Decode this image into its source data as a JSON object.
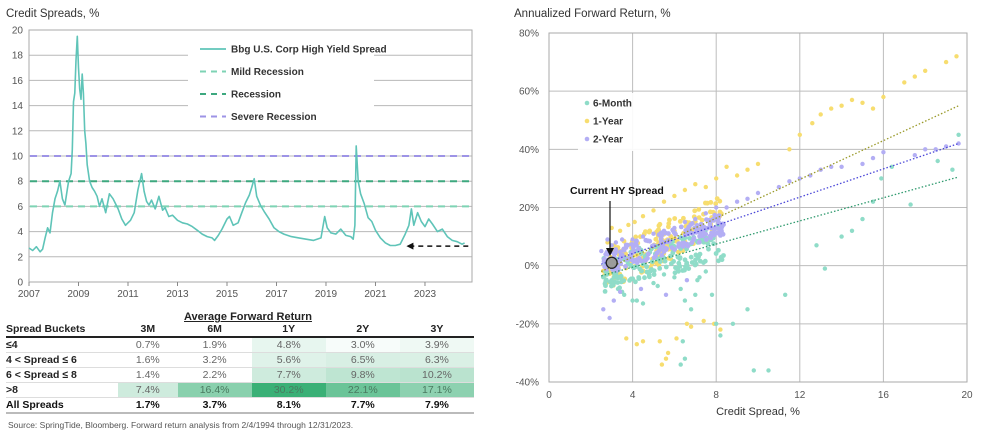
{
  "left_title": "Credit Spreads, %",
  "right_title": "Annualized Forward Return, %",
  "source": "Source: SpringTide, Bloomberg. Forward return analysis from 2/4/1994 through 12/31/2023.",
  "chart_data": [
    {
      "type": "line",
      "title": "Credit Spreads, %",
      "xlabel": "",
      "ylabel": "",
      "xlim": [
        2007,
        2024.9
      ],
      "ylim": [
        0,
        20
      ],
      "xticks": [
        "2007",
        "2009",
        "2011",
        "2013",
        "2015",
        "2017",
        "2019",
        "2021",
        "2023"
      ],
      "yticks": [
        "0",
        "2",
        "4",
        "6",
        "8",
        "10",
        "12",
        "14",
        "16",
        "18",
        "20"
      ],
      "grid": "horizontal",
      "legend_position": "top-center",
      "series": [
        {
          "name": "Bbg U.S. Corp High Yield Spread",
          "style": "solid",
          "color": "#5fc4b8",
          "x": [
            2007.0,
            2007.15,
            2007.3,
            2007.45,
            2007.55,
            2007.65,
            2007.75,
            2007.85,
            2007.95,
            2008.05,
            2008.15,
            2008.25,
            2008.35,
            2008.45,
            2008.55,
            2008.6,
            2008.7,
            2008.75,
            2008.8,
            2008.85,
            2008.9,
            2008.95,
            2009.0,
            2009.05,
            2009.1,
            2009.15,
            2009.2,
            2009.25,
            2009.3,
            2009.35,
            2009.45,
            2009.55,
            2009.65,
            2009.75,
            2009.85,
            2009.95,
            2010.1,
            2010.25,
            2010.4,
            2010.5,
            2010.6,
            2010.75,
            2010.9,
            2011.1,
            2011.25,
            2011.4,
            2011.55,
            2011.65,
            2011.75,
            2011.85,
            2011.95,
            2012.1,
            2012.25,
            2012.4,
            2012.5,
            2012.65,
            2012.8,
            2013.0,
            2013.2,
            2013.4,
            2013.6,
            2013.8,
            2014.0,
            2014.2,
            2014.4,
            2014.5,
            2014.65,
            2014.8,
            2015.0,
            2015.1,
            2015.25,
            2015.45,
            2015.6,
            2015.75,
            2015.9,
            2016.0,
            2016.1,
            2016.2,
            2016.35,
            2016.5,
            2016.7,
            2016.9,
            2017.1,
            2017.3,
            2017.6,
            2017.9,
            2018.2,
            2018.5,
            2018.8,
            2018.95,
            2019.05,
            2019.2,
            2019.4,
            2019.6,
            2019.8,
            2020.0,
            2020.1,
            2020.17,
            2020.22,
            2020.3,
            2020.4,
            2020.55,
            2020.7,
            2020.85,
            2021.0,
            2021.2,
            2021.4,
            2021.6,
            2021.8,
            2022.0,
            2022.2,
            2022.35,
            2022.45,
            2022.55,
            2022.7,
            2022.85,
            2023.0,
            2023.15,
            2023.3,
            2023.5,
            2023.7,
            2023.9,
            2024.1,
            2024.3,
            2024.5,
            2024.6
          ],
          "y": [
            2.7,
            2.5,
            2.8,
            2.4,
            2.6,
            3.5,
            4.3,
            3.9,
            5.5,
            6.6,
            7.2,
            8.0,
            6.6,
            6.1,
            7.4,
            8.0,
            8.6,
            10.5,
            14.3,
            15.0,
            17.6,
            19.5,
            17.0,
            15.3,
            14.5,
            16.5,
            15.0,
            12.0,
            11.0,
            9.3,
            8.0,
            7.5,
            7.2,
            6.8,
            6.0,
            6.6,
            5.5,
            7.0,
            6.6,
            6.2,
            5.8,
            5.0,
            4.5,
            4.9,
            5.5,
            7.3,
            8.6,
            7.2,
            6.4,
            6.1,
            6.5,
            5.8,
            6.8,
            5.7,
            5.9,
            5.2,
            5.3,
            4.9,
            4.7,
            4.6,
            4.4,
            4.1,
            3.8,
            3.6,
            3.5,
            3.3,
            3.7,
            4.2,
            5.0,
            5.2,
            4.5,
            4.7,
            5.5,
            6.3,
            6.9,
            7.5,
            8.2,
            6.8,
            6.1,
            5.6,
            5.0,
            4.3,
            4.0,
            3.8,
            3.6,
            3.5,
            3.4,
            3.3,
            3.5,
            5.2,
            4.3,
            3.9,
            3.8,
            4.2,
            3.7,
            3.6,
            3.4,
            4.5,
            10.8,
            8.0,
            7.0,
            6.2,
            5.1,
            4.8,
            4.1,
            3.5,
            3.1,
            2.9,
            2.9,
            3.0,
            3.8,
            4.5,
            5.8,
            4.5,
            5.5,
            4.8,
            4.4,
            5.0,
            4.6,
            4.0,
            4.2,
            3.6,
            3.3,
            3.2,
            3.0,
            3.1
          ]
        },
        {
          "name": "Mild Recession",
          "style": "dashed",
          "color": "#7ed3b4",
          "y_const": 6
        },
        {
          "name": "Recession",
          "style": "dashed",
          "color": "#3da87f",
          "y_const": 8
        },
        {
          "name": "Severe Recession",
          "style": "dashed",
          "color": "#9d93e6",
          "y_const": 10
        }
      ]
    },
    {
      "type": "scatter",
      "title": "Annualized Forward Return, %",
      "xlabel": "Credit Spread, %",
      "ylabel": "",
      "xlim": [
        0,
        20
      ],
      "ylim": [
        -40,
        80
      ],
      "xticks": [
        "0",
        "4",
        "8",
        "12",
        "16",
        "20"
      ],
      "yticks": [
        "-40%",
        "-20%",
        "0%",
        "20%",
        "40%",
        "60%",
        "80%"
      ],
      "grid": "both",
      "legend_position": "top-left",
      "annotation": {
        "text": "Current HY Spread",
        "x": 3.0,
        "y": 1.0
      },
      "series": [
        {
          "name": "6-Month",
          "color": "#8fdcc8",
          "trend": {
            "x": [
              2.5,
              19.6
            ],
            "y": [
              -3.5,
              30.5
            ]
          },
          "x": [
            2.7,
            3.0,
            3.3,
            3.6,
            4.0,
            4.5,
            5.0,
            5.5,
            6.0,
            6.3,
            6.5,
            6.8,
            7.0,
            7.2,
            7.5,
            7.8,
            8.0,
            8.2,
            8.8,
            9.5,
            9.8,
            10.5,
            11.3,
            12.8,
            13.2,
            14.0,
            14.5,
            15.0,
            15.5,
            15.9,
            16.4,
            17.3,
            18.6,
            19.3,
            19.6,
            3.1,
            3.5,
            4.2,
            5.2,
            6.2,
            6.6,
            7.1,
            7.4,
            7.9,
            8.1,
            6.3,
            6.5,
            6.4
          ],
          "y": [
            -2,
            -5,
            -8,
            -10,
            -12,
            -13,
            -6,
            -3,
            -4,
            -8,
            -12,
            -15,
            -10,
            -4,
            -2,
            -10,
            -20,
            -24,
            -20,
            -15,
            -36,
            -36,
            -10,
            7,
            -1,
            10,
            12,
            16,
            22,
            30,
            34,
            21,
            36,
            33,
            45,
            2,
            -9,
            -12,
            -7,
            -2,
            1,
            -5,
            8,
            11,
            14,
            -34,
            -32,
            -26
          ]
        },
        {
          "name": "1-Year",
          "color": "#f7dd6f",
          "trend": {
            "x": [
              2.5,
              19.6
            ],
            "y": [
              -2,
              55
            ]
          },
          "x": [
            2.8,
            3.0,
            3.4,
            3.8,
            4.1,
            4.5,
            5.0,
            5.5,
            6.0,
            6.5,
            7.0,
            7.5,
            8.0,
            8.5,
            9.0,
            9.5,
            10.0,
            11.5,
            12.0,
            12.6,
            13.0,
            13.5,
            14.0,
            14.5,
            15.0,
            15.5,
            16.0,
            17.0,
            17.5,
            18.0,
            19.0,
            19.5,
            3.7,
            4.2,
            4.5,
            5.3,
            5.6,
            6.1,
            6.8,
            7.4,
            7.9,
            8.2,
            5.4,
            5.7,
            6.6
          ],
          "y": [
            8,
            13,
            12,
            14,
            15,
            17,
            19,
            22,
            24,
            26,
            28,
            27,
            30,
            34,
            31,
            33,
            35,
            40,
            45,
            49,
            52,
            54,
            55,
            57,
            56,
            54,
            58,
            63,
            65,
            67,
            70,
            72,
            -25,
            -27,
            -26,
            -26,
            -32,
            -25,
            -21,
            -19,
            -20,
            -22,
            -34,
            -30,
            -20
          ]
        },
        {
          "name": "2-Year",
          "color": "#b3aef4",
          "trend": {
            "x": [
              2.5,
              19.6
            ],
            "y": [
              0.5,
              42
            ]
          },
          "x": [
            2.5,
            2.8,
            3.0,
            3.2,
            3.5,
            4.0,
            4.5,
            5.0,
            5.5,
            6.0,
            6.5,
            7.0,
            7.5,
            8.0,
            8.5,
            9.0,
            9.5,
            10.0,
            11.0,
            11.5,
            12.0,
            12.5,
            13.0,
            13.5,
            14.0,
            15.0,
            15.5,
            16.0,
            17.5,
            18.0,
            18.5,
            19.0,
            19.6,
            2.6,
            2.9,
            3.1,
            3.4,
            4.4,
            5.6,
            6.6
          ],
          "y": [
            5,
            9,
            7,
            8,
            9,
            9,
            10,
            11,
            12,
            13,
            15,
            16,
            18,
            20,
            20,
            22,
            23,
            25,
            27,
            29,
            30,
            31,
            33,
            34,
            34,
            35,
            37,
            39,
            38,
            40,
            40,
            41,
            42,
            -15,
            -18,
            -12,
            -9,
            -8,
            -10,
            -5
          ]
        }
      ]
    }
  ],
  "table": {
    "caption": "Average Forward Return",
    "headers": [
      "Spread Buckets",
      "3M",
      "6M",
      "1Y",
      "2Y",
      "3Y"
    ],
    "rows": [
      {
        "label": "≤4",
        "values": [
          "0.7%",
          "1.9%",
          "4.8%",
          "3.0%",
          "3.9%"
        ],
        "shade": [
          0,
          0,
          0.12,
          0.04,
          0.08
        ]
      },
      {
        "label": "4 < Spread ≤ 6",
        "values": [
          "1.6%",
          "3.2%",
          "5.6%",
          "6.5%",
          "6.3%"
        ],
        "shade": [
          0,
          0,
          0.16,
          0.2,
          0.19
        ]
      },
      {
        "label": "6 < Spread ≤ 8",
        "values": [
          "1.4%",
          "2.2%",
          "7.7%",
          "9.8%",
          "10.2%"
        ],
        "shade": [
          0,
          0,
          0.25,
          0.33,
          0.35
        ]
      },
      {
        "label": ">8",
        "values": [
          "7.4%",
          "16.4%",
          "30.2%",
          "22.1%",
          "17.1%"
        ],
        "shade": [
          0.25,
          0.6,
          1.0,
          0.75,
          0.58
        ]
      }
    ],
    "total": {
      "label": "All Spreads",
      "values": [
        "1.7%",
        "3.7%",
        "8.1%",
        "7.7%",
        "7.9%"
      ]
    }
  }
}
